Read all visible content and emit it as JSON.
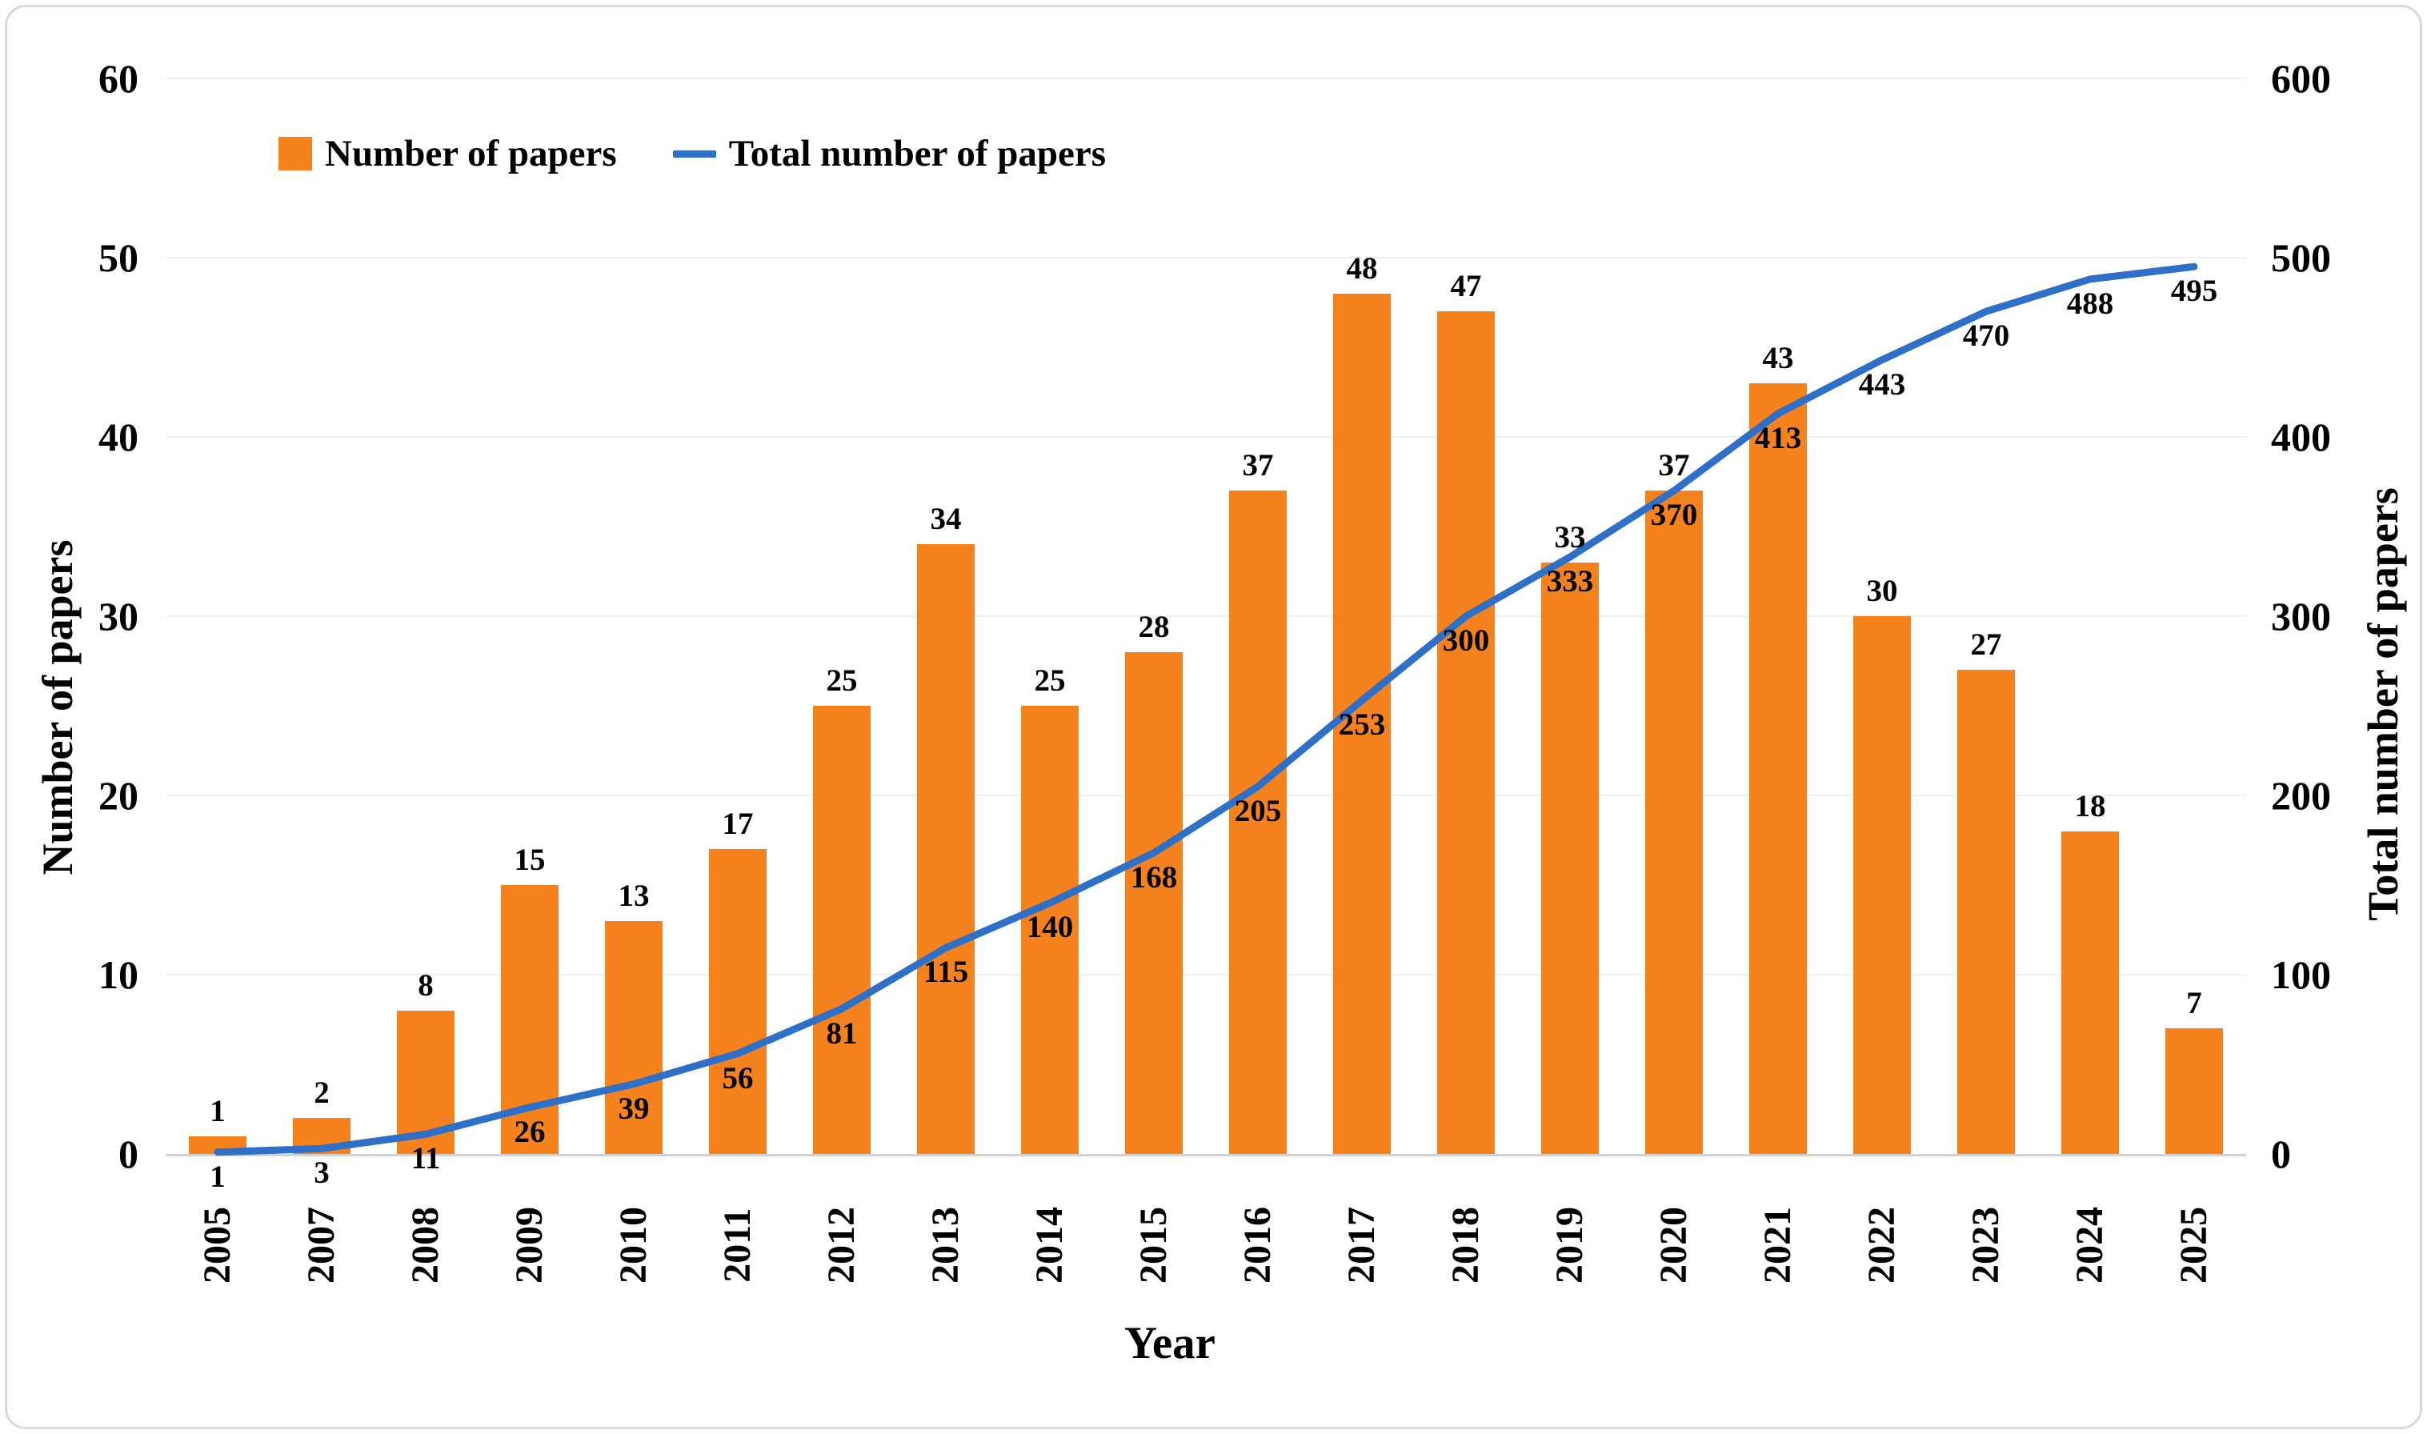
{
  "chart_data": {
    "type": "bar+line",
    "title": "",
    "categories": [
      "2005",
      "2007",
      "2008",
      "2009",
      "2010",
      "2011",
      "2012",
      "2013",
      "2014",
      "2015",
      "2016",
      "2017",
      "2018",
      "2019",
      "2020",
      "2021",
      "2022",
      "2023",
      "2024",
      "2025"
    ],
    "series": [
      {
        "name": "Number of papers",
        "type": "bar",
        "axis": "left",
        "color": "#F6821E",
        "values": [
          1,
          2,
          8,
          15,
          13,
          17,
          25,
          34,
          25,
          28,
          37,
          48,
          47,
          33,
          37,
          43,
          30,
          27,
          18,
          7
        ]
      },
      {
        "name": "Total number of papers",
        "type": "line",
        "axis": "right",
        "color": "#2E6FC8",
        "values": [
          1,
          3,
          11,
          26,
          39,
          56,
          81,
          115,
          140,
          168,
          205,
          253,
          300,
          333,
          370,
          413,
          443,
          470,
          488,
          495
        ]
      }
    ],
    "xlabel": "Year",
    "ylabel_left": "Number of papers",
    "ylabel_right": "Total number of papers",
    "yticks_left": [
      0,
      10,
      20,
      30,
      40,
      50,
      60
    ],
    "yticks_right": [
      0,
      100,
      200,
      300,
      400,
      500,
      600
    ],
    "ylim_left": [
      0,
      60
    ],
    "ylim_right": [
      0,
      600
    ],
    "grid": true,
    "data_labels": true,
    "legend_position": "top-left"
  }
}
